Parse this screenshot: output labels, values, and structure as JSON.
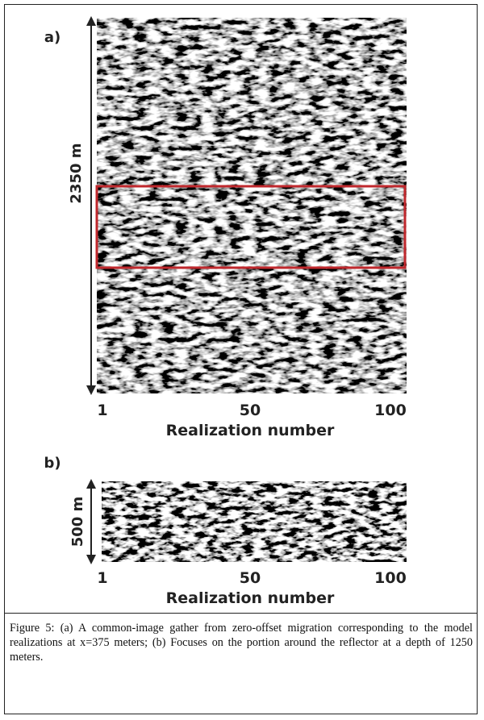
{
  "panel_a": {
    "label": "a)",
    "depth": "2350 m",
    "ticks": [
      "1",
      "50",
      "100"
    ],
    "x_label": "Realization number"
  },
  "panel_b": {
    "label": "b)",
    "depth": "500 m",
    "ticks": [
      "1",
      "50",
      "100"
    ],
    "x_label": "Realization number"
  },
  "caption": "Figure 5: (a) A common-image gather from zero-offset migration corresponding to the model realizations at x=375 meters; (b) Focuses on the portion around the reflector at a depth of 1250 meters."
}
